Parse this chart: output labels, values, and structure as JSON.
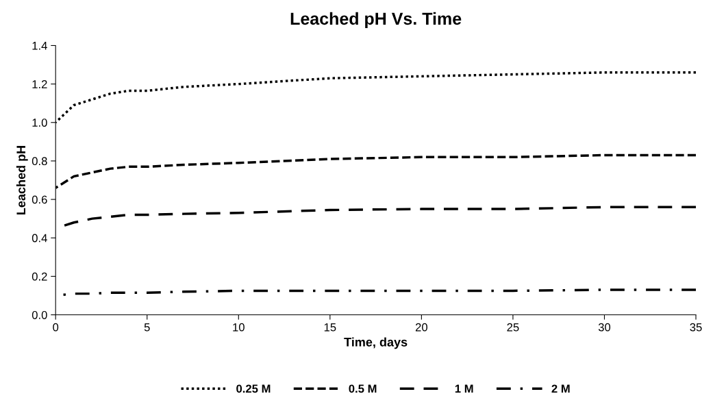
{
  "chart_data": {
    "type": "line",
    "title": "Leached pH Vs. Time",
    "xlabel": "Time, days",
    "ylabel": "Leached pH",
    "x": [
      0,
      1,
      2,
      3,
      4,
      5,
      7,
      10,
      15,
      20,
      25,
      30,
      35
    ],
    "series": [
      {
        "name": "0.25 M",
        "color": "#000000",
        "line_style": "dotted",
        "values": [
          1.0,
          1.09,
          1.12,
          1.15,
          1.165,
          1.165,
          1.185,
          1.2,
          1.23,
          1.24,
          1.25,
          1.26,
          1.26
        ]
      },
      {
        "name": "0.5 M",
        "color": "#000000",
        "line_style": "dashed",
        "values": [
          0.66,
          0.72,
          0.74,
          0.76,
          0.77,
          0.77,
          0.78,
          0.79,
          0.81,
          0.82,
          0.82,
          0.83,
          0.83
        ]
      },
      {
        "name": "1 M",
        "color": "#000000",
        "line_style": "longdash",
        "values": [
          0.45,
          0.48,
          0.5,
          0.51,
          0.52,
          0.52,
          0.525,
          0.53,
          0.545,
          0.55,
          0.55,
          0.56,
          0.56
        ]
      },
      {
        "name": "2 M",
        "color": "#000000",
        "line_style": "dashdot",
        "values": [
          0.1,
          0.11,
          0.11,
          0.115,
          0.115,
          0.115,
          0.12,
          0.125,
          0.125,
          0.125,
          0.125,
          0.13,
          0.13
        ]
      }
    ],
    "xlim": [
      0,
      35
    ],
    "xticks": [
      0,
      5,
      10,
      15,
      20,
      25,
      30,
      35
    ],
    "ylim": [
      0,
      1.4
    ],
    "yticks": [
      {
        "value": 0,
        "label": "0.0"
      },
      {
        "value": 0.2,
        "label": "0.2"
      },
      {
        "value": 0.4,
        "label": "0.4"
      },
      {
        "value": 0.6,
        "label": "0.6"
      },
      {
        "value": 0.8,
        "label": "0.8"
      },
      {
        "value": 1.0,
        "label": "1.0"
      },
      {
        "value": 1.2,
        "label": "1.2"
      },
      {
        "value": 1.4,
        "label": "1.4"
      }
    ],
    "grid": false,
    "legend": "bottom",
    "marker": "none"
  }
}
